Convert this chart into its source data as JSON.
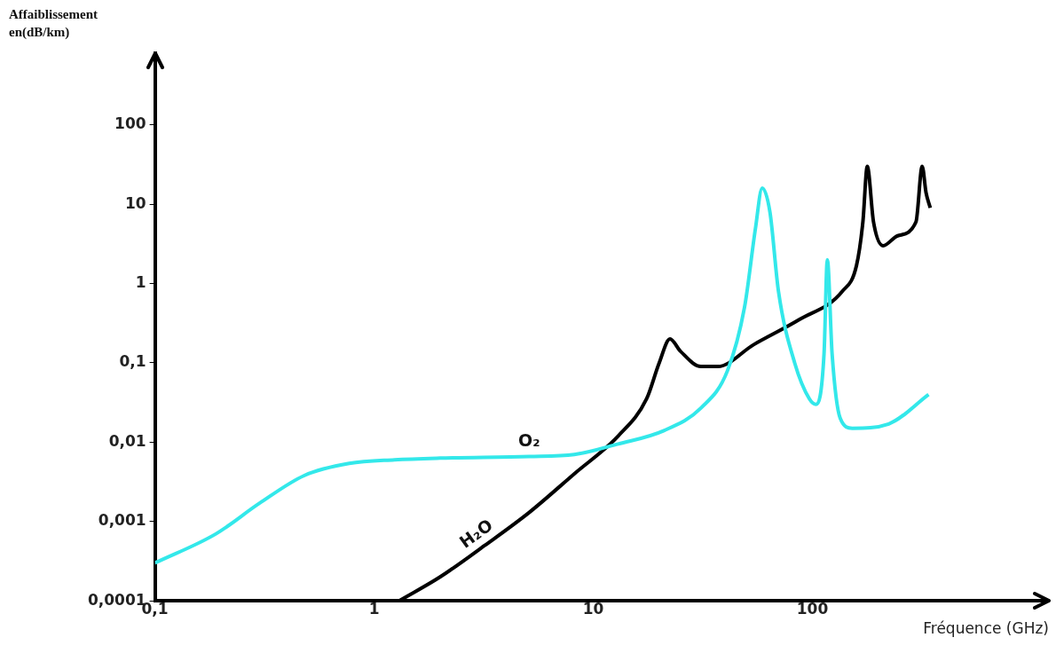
{
  "chart_data": {
    "type": "line",
    "ylabel": "Affaiblissement en(dB/km)",
    "xlabel": "Fréquence (GHz)",
    "log": "xy",
    "grid": false,
    "legend": false,
    "marker": "none",
    "line_style": "solid",
    "xlim": [
      0.1,
      1200
    ],
    "ylim": [
      0.0001,
      800
    ],
    "xticks": [
      {
        "value": 0.1,
        "label": "0,1"
      },
      1,
      10,
      100
    ],
    "yticks": [
      {
        "value": 0.0001,
        "label": "0,0001"
      },
      {
        "value": 0.001,
        "label": "0,001"
      },
      {
        "value": 0.01,
        "label": "0,01"
      },
      {
        "value": 0.1,
        "label": "0,1"
      },
      1,
      10,
      100
    ],
    "series": [
      {
        "name": "O₂",
        "color": "#33e8ea",
        "x": [
          0.1,
          0.19,
          0.3,
          0.48,
          0.77,
          1.24,
          2,
          5.1,
          8.2,
          13,
          21,
          31,
          41,
          49,
          55,
          59,
          64,
          70,
          83,
          97,
          104,
          113,
          117,
          123,
          134,
          152,
          223,
          339
        ],
        "values": [
          0.0003,
          0.0007,
          0.0017,
          0.0038,
          0.0054,
          0.006,
          0.0063,
          0.0066,
          0.007,
          0.0095,
          0.014,
          0.027,
          0.08,
          0.5,
          5,
          16,
          8,
          0.8,
          0.1,
          0.035,
          0.03,
          0.13,
          2,
          0.13,
          0.02,
          0.015,
          0.017,
          0.04
        ]
      },
      {
        "name": "H₂O",
        "color": "#000000",
        "x": [
          1.3,
          2,
          3.2,
          5.1,
          8.2,
          13,
          17.5,
          20,
          22.4,
          25,
          31,
          37,
          54,
          87,
          137,
          159,
          170,
          178,
          190,
          210,
          245,
          297,
          317,
          330,
          345
        ],
        "values": [
          0.0001,
          0.0002,
          0.0005,
          0.0013,
          0.004,
          0.012,
          0.035,
          0.1,
          0.2,
          0.14,
          0.09,
          0.09,
          0.17,
          0.35,
          0.8,
          1.7,
          6,
          30,
          6,
          3,
          4,
          6,
          30,
          14,
          9
        ]
      }
    ]
  }
}
